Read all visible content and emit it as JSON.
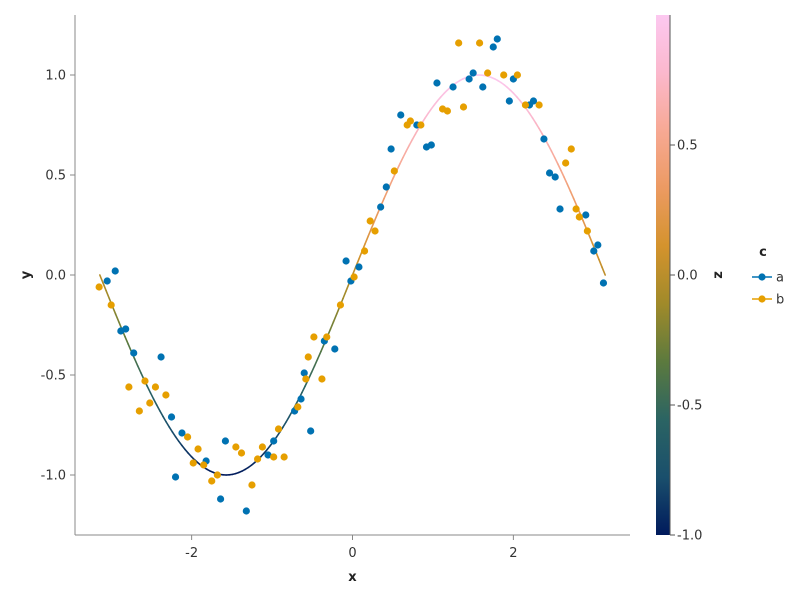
{
  "chart_data": {
    "type": "scatter",
    "title": "",
    "xlabel": "x",
    "ylabel": "y",
    "xlim": [
      -3.45,
      3.45
    ],
    "ylim": [
      -1.3,
      1.3
    ],
    "x_ticks": [
      -2,
      0,
      2
    ],
    "x_tick_labels": [
      "-2",
      "0",
      "2"
    ],
    "y_ticks": [
      -1.0,
      -0.5,
      0.0,
      0.5,
      1.0
    ],
    "y_tick_labels": [
      "-1.0",
      "-0.5",
      "0.0",
      "0.5",
      "1.0"
    ],
    "grid": false,
    "legend": {
      "title": "c",
      "placement": "right",
      "entries": [
        {
          "label": "a",
          "color": "#0072b2"
        },
        {
          "label": "b",
          "color": "#e69f00"
        }
      ]
    },
    "series": [
      {
        "name": "a",
        "color": "#0072b2",
        "x": [
          -3.05,
          -2.95,
          -2.88,
          -2.82,
          -2.72,
          -2.38,
          -2.25,
          -2.2,
          -2.12,
          -1.82,
          -1.64,
          -1.58,
          -1.32,
          -1.05,
          -0.98,
          -0.72,
          -0.64,
          -0.6,
          -0.52,
          -0.35,
          -0.22,
          -0.08,
          -0.02,
          0.08,
          0.35,
          0.42,
          0.48,
          0.6,
          0.8,
          0.92,
          0.98,
          1.05,
          1.25,
          1.45,
          1.5,
          1.62,
          1.75,
          1.8,
          1.95,
          2.0,
          2.2,
          2.25,
          2.38,
          2.45,
          2.52,
          2.58,
          2.9,
          3.0,
          3.05,
          3.12
        ],
        "y": [
          -0.03,
          0.02,
          -0.28,
          -0.27,
          -0.39,
          -0.41,
          -0.71,
          -1.01,
          -0.79,
          -0.93,
          -1.12,
          -0.83,
          -1.18,
          -0.9,
          -0.83,
          -0.68,
          -0.62,
          -0.49,
          -0.78,
          -0.33,
          -0.37,
          0.07,
          -0.03,
          0.04,
          0.34,
          0.44,
          0.63,
          0.8,
          0.75,
          0.64,
          0.65,
          0.96,
          0.94,
          0.98,
          1.01,
          0.94,
          1.14,
          1.18,
          0.87,
          0.98,
          0.85,
          0.87,
          0.68,
          0.51,
          0.49,
          0.33,
          0.3,
          0.12,
          0.15,
          -0.04
        ]
      },
      {
        "name": "b",
        "color": "#e69f00",
        "x": [
          -3.15,
          -3.0,
          -2.78,
          -2.65,
          -2.58,
          -2.52,
          -2.45,
          -2.32,
          -2.05,
          -1.98,
          -1.92,
          -1.85,
          -1.75,
          -1.68,
          -1.45,
          -1.38,
          -1.25,
          -1.18,
          -1.12,
          -0.98,
          -0.92,
          -0.85,
          -0.68,
          -0.58,
          -0.55,
          -0.48,
          -0.38,
          -0.32,
          -0.15,
          0.02,
          0.15,
          0.22,
          0.28,
          0.52,
          0.68,
          0.72,
          0.85,
          1.12,
          1.18,
          1.32,
          1.38,
          1.58,
          1.68,
          1.88,
          2.05,
          2.15,
          2.32,
          2.65,
          2.72,
          2.78,
          2.82,
          2.92
        ],
        "y": [
          -0.06,
          -0.15,
          -0.56,
          -0.68,
          -0.53,
          -0.64,
          -0.56,
          -0.6,
          -0.81,
          -0.94,
          -0.87,
          -0.95,
          -1.03,
          -1.0,
          -0.86,
          -0.89,
          -1.05,
          -0.92,
          -0.86,
          -0.91,
          -0.77,
          -0.91,
          -0.66,
          -0.52,
          -0.41,
          -0.31,
          -0.52,
          -0.31,
          -0.15,
          -0.01,
          0.12,
          0.27,
          0.22,
          0.52,
          0.75,
          0.77,
          0.75,
          0.83,
          0.82,
          1.16,
          0.84,
          1.16,
          1.01,
          1.0,
          1.0,
          0.85,
          0.85,
          0.56,
          0.63,
          0.33,
          0.29,
          0.22
        ]
      }
    ],
    "line": {
      "function": "sin",
      "x_range": [
        -3.14159,
        3.14159
      ],
      "color_by": "z"
    },
    "colorbar": {
      "label": "z",
      "range": [
        -1.0,
        1.0
      ],
      "ticks": [
        -1.0,
        -0.5,
        0.0,
        0.5
      ],
      "tick_labels": [
        "-1.0",
        "-0.5",
        "0.0",
        "0.5"
      ],
      "colorscale": [
        "#001a5c",
        "#1a4f6c",
        "#2b6463",
        "#5c7a3e",
        "#a08a2a",
        "#d4932d",
        "#ec9a62",
        "#f7a994",
        "#fbb8cd",
        "#fcc8f0"
      ]
    }
  }
}
